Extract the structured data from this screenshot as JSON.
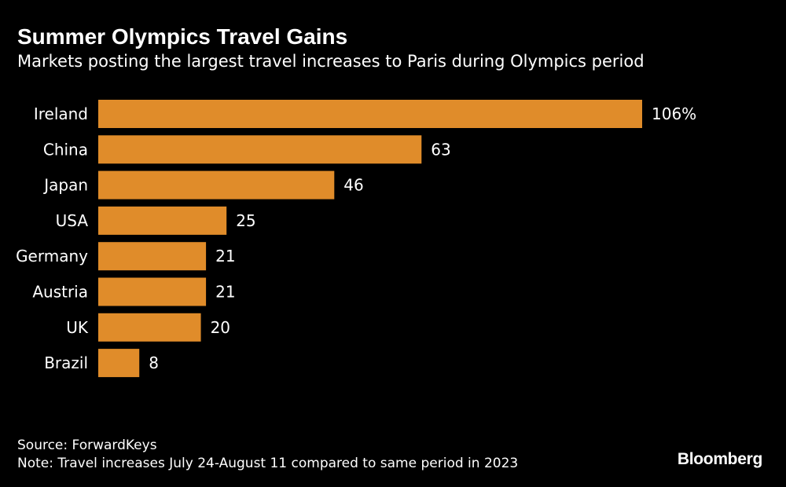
{
  "header": {
    "title": "Summer Olympics Travel Gains",
    "subtitle": "Markets posting the largest travel increases to Paris during Olympics period"
  },
  "chart_data": {
    "type": "bar",
    "orientation": "horizontal",
    "title": "Summer Olympics Travel Gains",
    "subtitle": "Markets posting the largest travel increases to Paris during Olympics period",
    "categories": [
      "Ireland",
      "China",
      "Japan",
      "USA",
      "Germany",
      "Austria",
      "UK",
      "Brazil"
    ],
    "values": [
      106,
      63,
      46,
      25,
      21,
      21,
      20,
      8
    ],
    "value_labels": [
      "106%",
      "63",
      "46",
      "25",
      "21",
      "21",
      "20",
      "8"
    ],
    "unit": "%",
    "xlabel": "",
    "ylabel": "",
    "xlim": [
      0,
      106
    ],
    "grid": false,
    "legend": "none",
    "bar_color": "#e08c2a"
  },
  "footer": {
    "source": "Source: ForwardKeys",
    "note": "Note: Travel increases July 24-August 11 compared to same period in 2023",
    "brand": "Bloomberg"
  },
  "colors": {
    "background": "#000000",
    "text": "#ffffff",
    "bar": "#e08c2a"
  }
}
